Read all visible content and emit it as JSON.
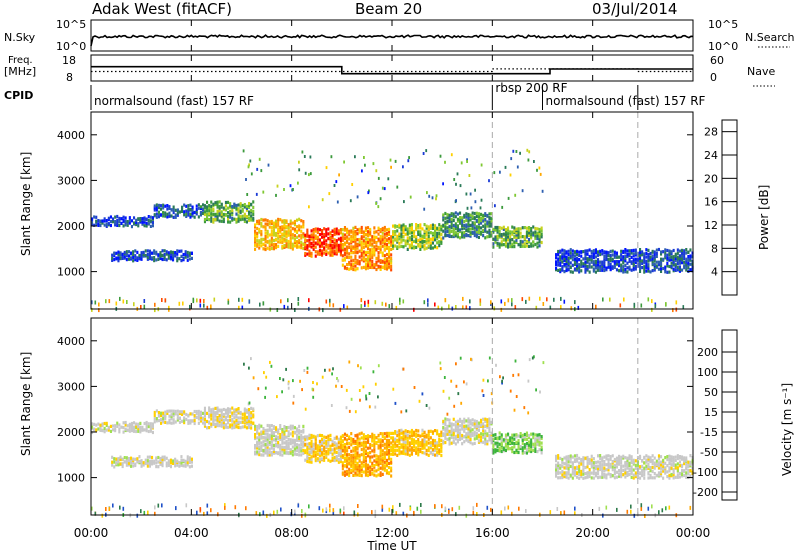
{
  "header": {
    "station": "Adak West (fitACF)",
    "beam": "Beam 20",
    "date": "03/Jul/2014"
  },
  "nsky_panel": {
    "left_label": "N.Sky",
    "left_ticks": [
      "10^5",
      "10^0"
    ],
    "right_label": "N.Search",
    "right_ticks": [
      "10^5",
      "10^0"
    ]
  },
  "freq_panel": {
    "left_label_line1": "Freq.",
    "left_label_line2": "[MHz]",
    "left_ticks": [
      "18",
      "8"
    ],
    "right_label": "Nave",
    "right_ticks": [
      "60",
      "0"
    ],
    "freq_steps": [
      {
        "from": 0.0,
        "to": 10.0,
        "value": 13.5
      },
      {
        "from": 10.0,
        "to": 16.0,
        "value": 10.8
      },
      {
        "from": 16.0,
        "to": 18.3,
        "value": 10.8
      },
      {
        "from": 18.3,
        "to": 24.0,
        "value": 12.6
      }
    ],
    "nave_steps": [
      {
        "from": 0.0,
        "to": 16.0,
        "value": 22
      },
      {
        "from": 16.0,
        "to": 18.3,
        "value": 28
      },
      {
        "from": 18.3,
        "to": 21.8,
        "value": 28
      },
      {
        "from": 21.8,
        "to": 24.0,
        "value": 22
      }
    ]
  },
  "cpid_panel": {
    "label": "CPID",
    "segments": [
      {
        "text": "normalsound (fast) 157 RF",
        "start_hour": 0.0
      },
      {
        "text": "rbsp 200 RF",
        "start_hour": 16.0
      },
      {
        "text": "normalsound (fast) 157 RF",
        "start_hour": 18.0
      }
    ]
  },
  "chart_data": [
    {
      "type": "heatmap",
      "title": "",
      "xlabel": "Time UT",
      "ylabel": "Slant Range [km]",
      "xlim": [
        0,
        24
      ],
      "ylim": [
        180,
        4500
      ],
      "x_tick_labels": [
        "00:00",
        "04:00",
        "08:00",
        "12:00",
        "16:00",
        "20:00",
        "00:00"
      ],
      "x_ticks_hours": [
        0,
        4,
        8,
        12,
        16,
        20,
        24
      ],
      "y_ticks": [
        1000,
        2000,
        3000,
        4000
      ],
      "colorbar": {
        "label": "Power [dB]",
        "ticks": [
          4,
          8,
          12,
          16,
          20,
          24,
          28
        ],
        "range": [
          0,
          30
        ],
        "colors": [
          "#0014ff",
          "#1a3ad6",
          "#2d5fb0",
          "#2a7a58",
          "#3c9a3c",
          "#7fc832",
          "#c8d21e",
          "#ffd000",
          "#ffa800",
          "#ff7a00",
          "#ff4a00",
          "#ff0000"
        ]
      },
      "dashed_lines_hours": [
        16.0,
        21.8
      ],
      "echo_bands": [
        {
          "from": 0.0,
          "to": 2.5,
          "range_start": 2050,
          "range_end": 2250,
          "power": 5
        },
        {
          "from": 2.5,
          "to": 4.5,
          "range_start": 2250,
          "range_end": 2500,
          "power": 6
        },
        {
          "from": 4.5,
          "to": 6.5,
          "range_start": 2150,
          "range_end": 2550,
          "power": 12
        },
        {
          "from": 6.5,
          "to": 8.5,
          "range_start": 1550,
          "range_end": 2200,
          "power": 20
        },
        {
          "from": 8.5,
          "to": 10.0,
          "range_start": 1400,
          "range_end": 2000,
          "power": 26
        },
        {
          "from": 10.0,
          "to": 12.0,
          "range_start": 1100,
          "range_end": 2000,
          "power": 22
        },
        {
          "from": 12.0,
          "to": 14.0,
          "range_start": 1550,
          "range_end": 2050,
          "power": 14
        },
        {
          "from": 14.0,
          "to": 16.0,
          "range_start": 1800,
          "range_end": 2300,
          "power": 10
        },
        {
          "from": 16.0,
          "to": 18.0,
          "range_start": 1600,
          "range_end": 2000,
          "power": 12
        },
        {
          "from": 0.8,
          "to": 4.0,
          "range_start": 1300,
          "range_end": 1500,
          "power": 5
        },
        {
          "from": 18.5,
          "to": 24.0,
          "range_start": 1050,
          "range_end": 1500,
          "power": 5
        }
      ]
    },
    {
      "type": "heatmap",
      "title": "",
      "xlabel": "Time UT",
      "ylabel": "Slant Range [km]",
      "xlim": [
        0,
        24
      ],
      "ylim": [
        180,
        4500
      ],
      "x_tick_labels": [
        "00:00",
        "04:00",
        "08:00",
        "12:00",
        "16:00",
        "20:00",
        "00:00"
      ],
      "x_ticks_hours": [
        0,
        4,
        8,
        12,
        16,
        20,
        24
      ],
      "y_ticks": [
        1000,
        2000,
        3000,
        4000
      ],
      "colorbar": {
        "label": "Velocity [m s⁻¹]",
        "ticks": [
          "200",
          "100",
          "50",
          "15",
          "-15",
          "-50",
          "-100",
          "-200"
        ],
        "colors": [
          "#0014ff",
          "#1e50c8",
          "#2d7a4a",
          "#3cb43c",
          "#a0e050",
          "#c8c8c8",
          "#ffd000",
          "#ffa800",
          "#ff7a00",
          "#ff4a00",
          "#ff0000"
        ]
      },
      "dashed_lines_hours": [
        16.0,
        21.8
      ],
      "echo_bands": [
        {
          "from": 0.0,
          "to": 2.5,
          "range_start": 2050,
          "range_end": 2250,
          "velocity": 0
        },
        {
          "from": 2.5,
          "to": 4.5,
          "range_start": 2250,
          "range_end": 2500,
          "velocity": 0
        },
        {
          "from": 4.5,
          "to": 6.5,
          "range_start": 2150,
          "range_end": 2550,
          "velocity": -10
        },
        {
          "from": 6.5,
          "to": 8.5,
          "range_start": 1550,
          "range_end": 2200,
          "velocity": 0
        },
        {
          "from": 8.5,
          "to": 10.0,
          "range_start": 1400,
          "range_end": 2000,
          "velocity": -20
        },
        {
          "from": 10.0,
          "to": 12.0,
          "range_start": 1100,
          "range_end": 2000,
          "velocity": -40
        },
        {
          "from": 12.0,
          "to": 14.0,
          "range_start": 1550,
          "range_end": 2050,
          "velocity": -30
        },
        {
          "from": 14.0,
          "to": 16.0,
          "range_start": 1800,
          "range_end": 2300,
          "velocity": 0
        },
        {
          "from": 16.0,
          "to": 18.0,
          "range_start": 1600,
          "range_end": 2000,
          "velocity": 30
        },
        {
          "from": 0.8,
          "to": 4.0,
          "range_start": 1300,
          "range_end": 1500,
          "velocity": 0
        },
        {
          "from": 18.5,
          "to": 24.0,
          "range_start": 1050,
          "range_end": 1500,
          "velocity": 0
        }
      ]
    }
  ]
}
